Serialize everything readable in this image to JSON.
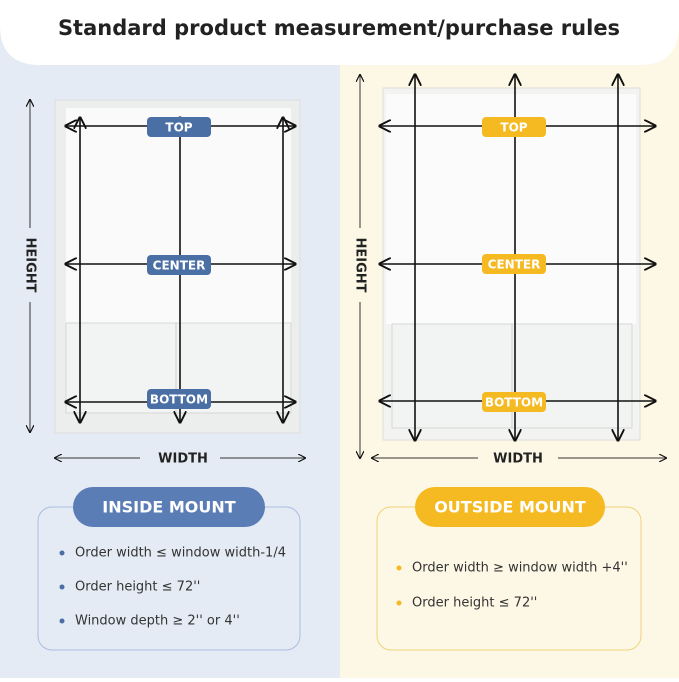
{
  "header": {
    "title": "Standard product measurement/purchase rules"
  },
  "inside": {
    "top": "TOP",
    "center": "CENTER",
    "bottom": "BOTTOM",
    "height": "HEIGHT",
    "width": "WIDTH",
    "mount": "INSIDE MOUNT",
    "rules": [
      "Order width ≤ window width-1/4",
      "Order height ≤ 72''",
      "Window depth ≥ 2'' or 4''"
    ]
  },
  "outside": {
    "top": "TOP",
    "center": "CENTER",
    "bottom": "BOTTOM",
    "height": "HEIGHT",
    "width": "WIDTH",
    "mount": "OUTSIDE MOUNT",
    "rules": [
      "Order width ≥ window width +4''",
      "Order height ≤ 72''"
    ]
  }
}
